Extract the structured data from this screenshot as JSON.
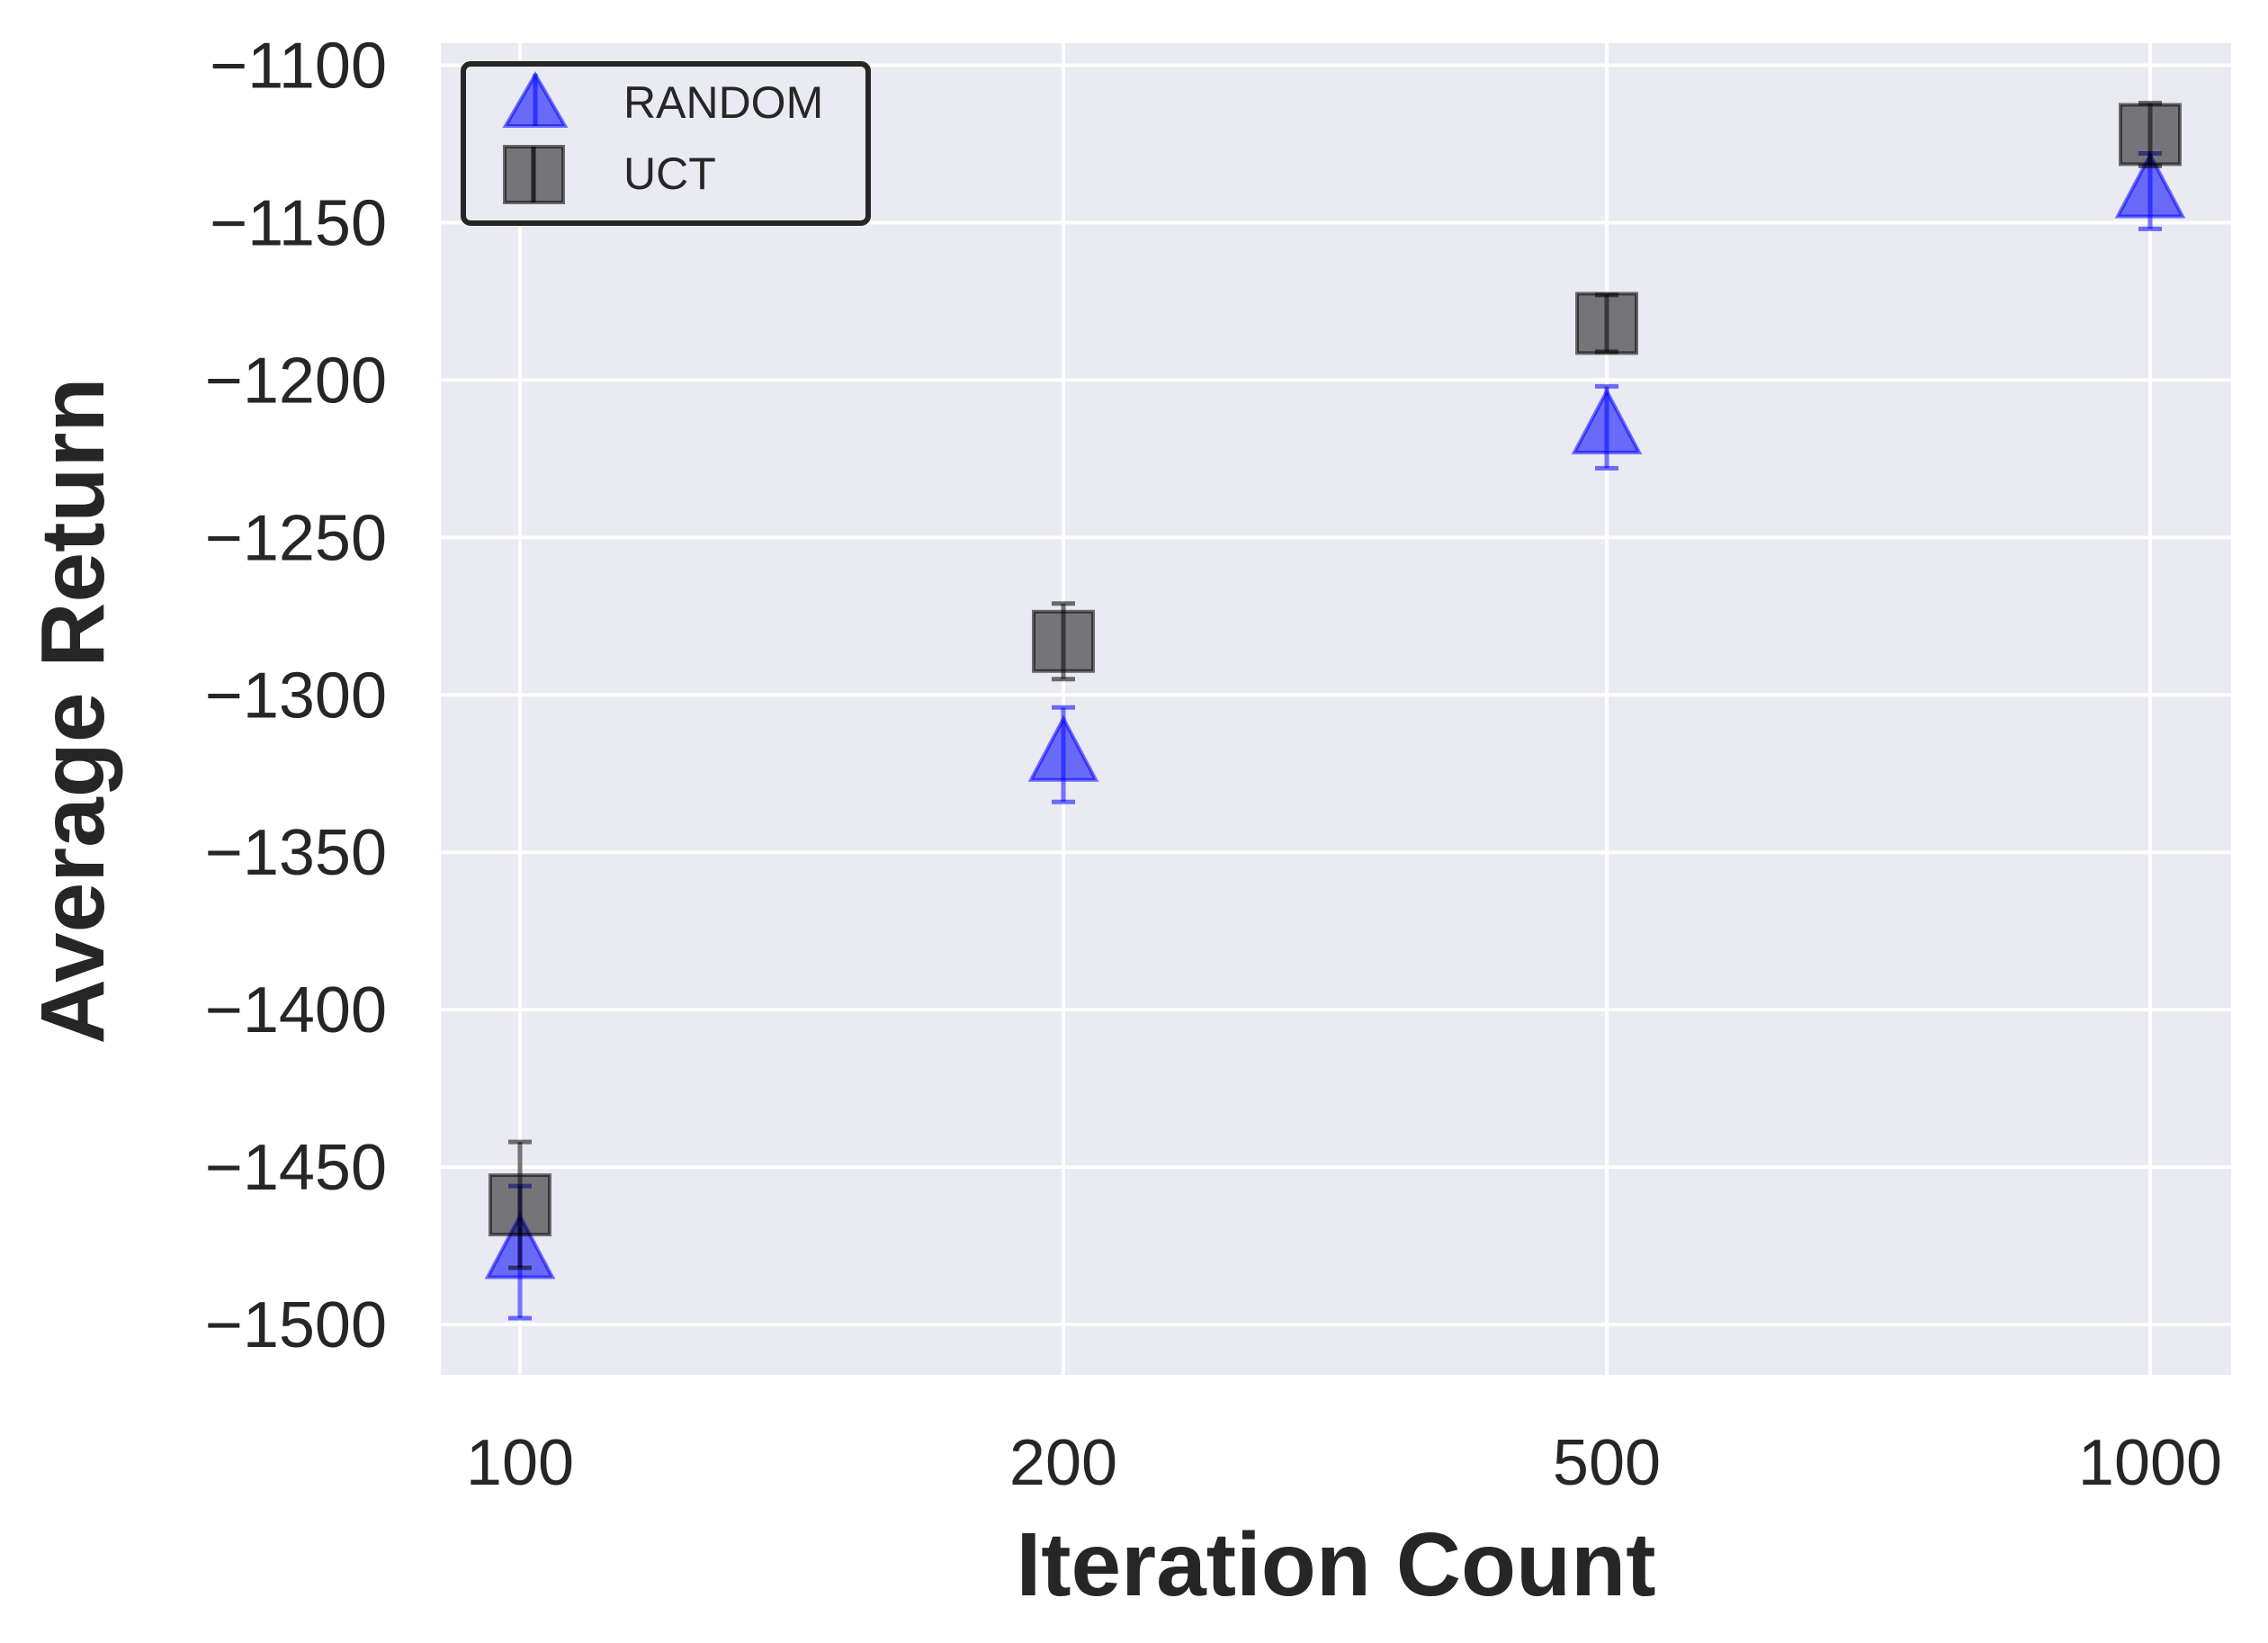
{
  "chart_data": {
    "type": "scatter",
    "categories": [
      "100",
      "200",
      "500",
      "1000"
    ],
    "xlabel": "Iteration Count",
    "ylabel": "Average Return",
    "ylim": [
      -1516,
      -1093
    ],
    "yticks": [
      -1100,
      -1150,
      -1200,
      -1250,
      -1300,
      -1350,
      -1400,
      -1450,
      -1500
    ],
    "ytick_labels": [
      "−1100",
      "−1150",
      "−1200",
      "−1250",
      "−1300",
      "−1350",
      "−1400",
      "−1450",
      "−1500"
    ],
    "grid": true,
    "legend_position": "top-left",
    "series": [
      {
        "name": "RANDOM",
        "marker": "triangle",
        "color": "#0000ff",
        "values": [
          -1477,
          -1319,
          -1215,
          -1140
        ],
        "errors": [
          21,
          15,
          13,
          12
        ]
      },
      {
        "name": "UCT",
        "marker": "square",
        "color": "#000000",
        "values": [
          -1462,
          -1283,
          -1182,
          -1122
        ],
        "errors": [
          20,
          12,
          9,
          10
        ]
      }
    ]
  }
}
